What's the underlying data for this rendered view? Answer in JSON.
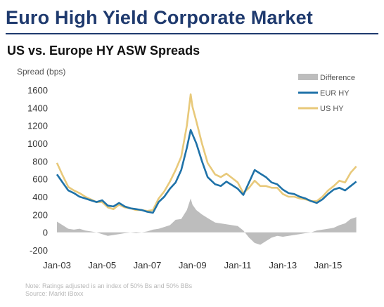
{
  "header": {
    "title": "Euro High Yield Corporate Market",
    "subtitle": "US vs. Europe HY ASW Spreads"
  },
  "footer": {
    "note": "Note: Ratings adjusted is an index of 50% Bs and 50% BBs",
    "source": "Source: Markit iBoxx"
  },
  "colors": {
    "eur_hy": "#1f72a8",
    "us_hy": "#e8c97a",
    "difference": "#bdbdbd",
    "title": "#1f3a6e"
  },
  "chart_data": {
    "type": "line",
    "ylabel": "Spread (bps)",
    "ylim": [
      -200,
      1600
    ],
    "yticks": [
      -200,
      0,
      200,
      400,
      600,
      800,
      1000,
      1200,
      1400,
      1600
    ],
    "xlim": [
      "2003-01",
      "2016-06"
    ],
    "xticks": [
      "Jan-03",
      "Jan-05",
      "Jan-07",
      "Jan-09",
      "Jan-11",
      "Jan-13",
      "Jan-15"
    ],
    "grid": false,
    "legend_position": "top-right",
    "x": [
      "2003-01",
      "2003-04",
      "2003-07",
      "2003-10",
      "2004-01",
      "2004-04",
      "2004-07",
      "2004-10",
      "2005-01",
      "2005-04",
      "2005-07",
      "2005-10",
      "2006-01",
      "2006-04",
      "2006-07",
      "2006-10",
      "2007-01",
      "2007-04",
      "2007-07",
      "2007-10",
      "2008-01",
      "2008-04",
      "2008-07",
      "2008-10",
      "2008-12",
      "2009-01",
      "2009-03",
      "2009-06",
      "2009-09",
      "2010-01",
      "2010-04",
      "2010-07",
      "2010-10",
      "2011-01",
      "2011-04",
      "2011-07",
      "2011-10",
      "2012-01",
      "2012-04",
      "2012-07",
      "2012-10",
      "2013-01",
      "2013-04",
      "2013-07",
      "2013-10",
      "2014-01",
      "2014-04",
      "2014-07",
      "2014-10",
      "2015-01",
      "2015-04",
      "2015-07",
      "2015-10",
      "2016-01",
      "2016-04"
    ],
    "series": [
      {
        "name": "Difference",
        "style": "area",
        "values": [
          120,
          80,
          40,
          30,
          40,
          20,
          10,
          0,
          -20,
          -40,
          -30,
          -20,
          -10,
          0,
          -10,
          0,
          10,
          30,
          40,
          60,
          80,
          140,
          150,
          250,
          380,
          310,
          250,
          200,
          160,
          110,
          100,
          90,
          80,
          70,
          20,
          -60,
          -120,
          -140,
          -100,
          -60,
          -40,
          -50,
          -40,
          -30,
          -20,
          -10,
          0,
          20,
          30,
          40,
          50,
          80,
          100,
          150,
          170
        ]
      },
      {
        "name": "EUR HY",
        "style": "line",
        "values": [
          650,
          560,
          470,
          440,
          400,
          380,
          360,
          340,
          360,
          300,
          290,
          330,
          290,
          270,
          260,
          250,
          230,
          220,
          340,
          400,
          490,
          560,
          700,
          950,
          1150,
          1100,
          1000,
          800,
          620,
          540,
          520,
          570,
          530,
          490,
          420,
          560,
          700,
          660,
          620,
          560,
          540,
          480,
          440,
          430,
          400,
          380,
          350,
          330,
          370,
          430,
          480,
          500,
          470,
          520,
          570
        ]
      },
      {
        "name": "US HY",
        "style": "line",
        "values": [
          780,
          640,
          510,
          470,
          440,
          400,
          370,
          340,
          340,
          280,
          260,
          310,
          280,
          270,
          250,
          250,
          240,
          250,
          380,
          460,
          570,
          700,
          850,
          1200,
          1550,
          1410,
          1250,
          1000,
          780,
          650,
          620,
          660,
          610,
          560,
          440,
          500,
          580,
          520,
          520,
          500,
          500,
          430,
          400,
          400,
          380,
          370,
          350,
          350,
          400,
          470,
          520,
          580,
          560,
          670,
          740
        ]
      }
    ]
  }
}
